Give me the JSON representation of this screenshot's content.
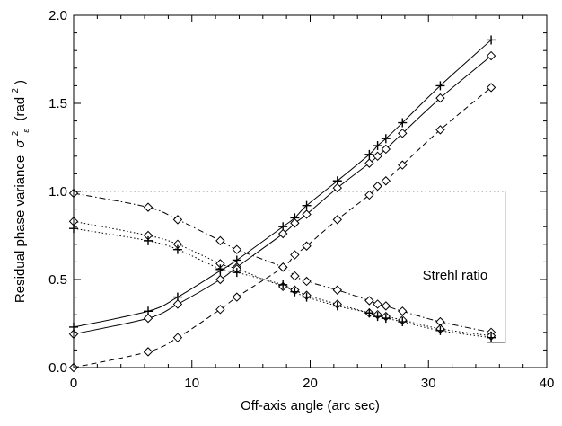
{
  "chart_data": {
    "type": "line",
    "title": "",
    "xlabel": "Off-axis angle (arc sec)",
    "ylabel": "Residual phase variance",
    "ylabel_symbol": "σ",
    "ylabel_subscript": "ε",
    "ylabel_superscript": "2",
    "ylabel_unit_open": "(rad",
    "ylabel_unit_superscript": "2",
    "ylabel_unit_close": ")",
    "xlim": [
      0,
      40
    ],
    "ylim": [
      0,
      2.0
    ],
    "xticks": [
      "0",
      "10",
      "20",
      "30",
      "40"
    ],
    "yticks": [
      "0.0",
      "0.5",
      "1.0",
      "1.5",
      "2.0"
    ],
    "annotations": [
      {
        "text": "Strehl ratio",
        "x": 29.5,
        "y": 0.5
      }
    ],
    "reference_lines": [
      {
        "type": "dotted",
        "y": 1.0,
        "x": [
          0,
          36.5
        ]
      }
    ],
    "bracket": {
      "x": [
        0,
        36.5
      ],
      "y": [
        0.14,
        1.0
      ]
    },
    "series": [
      {
        "line": "solid",
        "marker": "plus",
        "x": [
          0,
          6.3,
          8.8,
          12.4,
          13.8,
          17.7,
          18.7,
          19.7,
          22.3,
          25.0,
          25.7,
          26.4,
          27.8,
          31.0,
          35.3
        ],
        "y": [
          0.23,
          0.32,
          0.4,
          0.55,
          0.61,
          0.8,
          0.85,
          0.92,
          1.06,
          1.21,
          1.26,
          1.3,
          1.39,
          1.6,
          1.86
        ]
      },
      {
        "line": "solid",
        "marker": "diamond",
        "x": [
          0,
          6.3,
          8.8,
          12.4,
          13.8,
          17.7,
          18.7,
          19.7,
          22.3,
          25.0,
          25.7,
          26.4,
          27.8,
          31.0,
          35.3
        ],
        "y": [
          0.19,
          0.28,
          0.36,
          0.5,
          0.57,
          0.76,
          0.82,
          0.87,
          1.02,
          1.16,
          1.2,
          1.24,
          1.33,
          1.53,
          1.77
        ]
      },
      {
        "line": "dashed",
        "marker": "diamond",
        "x": [
          0,
          6.3,
          8.8,
          12.4,
          13.8,
          17.7,
          18.7,
          19.7,
          22.3,
          25.0,
          25.7,
          26.4,
          27.8,
          31.0,
          35.3
        ],
        "y": [
          0.0,
          0.09,
          0.17,
          0.33,
          0.4,
          0.57,
          0.64,
          0.69,
          0.84,
          0.98,
          1.03,
          1.06,
          1.15,
          1.35,
          1.59
        ]
      },
      {
        "line": "dashdot",
        "marker": "diamond",
        "x": [
          0,
          6.3,
          8.8,
          12.4,
          13.8,
          17.7,
          18.7,
          19.7,
          22.3,
          25.0,
          25.7,
          26.4,
          27.8,
          31.0,
          35.3
        ],
        "y": [
          0.99,
          0.91,
          0.84,
          0.72,
          0.67,
          0.57,
          0.52,
          0.49,
          0.44,
          0.38,
          0.36,
          0.35,
          0.32,
          0.26,
          0.2
        ]
      },
      {
        "line": "dotted",
        "marker": "diamond",
        "x": [
          0,
          6.3,
          8.8,
          12.4,
          13.8,
          17.7,
          18.7,
          19.7,
          22.3,
          25.0,
          25.7,
          26.4,
          27.8,
          31.0,
          35.3
        ],
        "y": [
          0.83,
          0.75,
          0.7,
          0.59,
          0.56,
          0.46,
          0.44,
          0.41,
          0.36,
          0.31,
          0.3,
          0.29,
          0.27,
          0.22,
          0.18
        ]
      },
      {
        "line": "dotted",
        "marker": "plus",
        "x": [
          0,
          6.3,
          8.8,
          12.4,
          13.8,
          17.7,
          18.7,
          19.7,
          22.3,
          25.0,
          25.7,
          26.4,
          27.8,
          31.0,
          35.3
        ],
        "y": [
          0.79,
          0.72,
          0.67,
          0.56,
          0.54,
          0.47,
          0.43,
          0.4,
          0.35,
          0.31,
          0.29,
          0.28,
          0.26,
          0.21,
          0.17
        ]
      }
    ]
  }
}
